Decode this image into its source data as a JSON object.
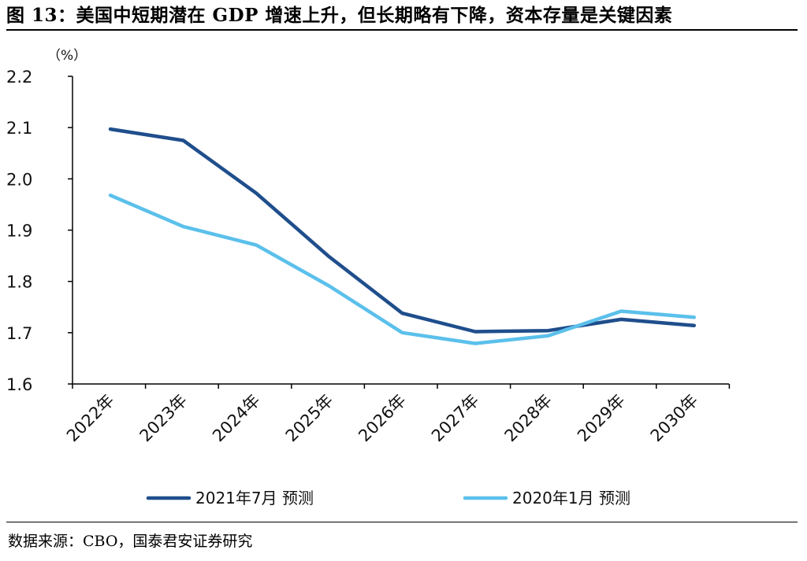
{
  "figure": {
    "title": "图 13：美国中短期潜在 GDP 增速上升，但长期略有下降，资本存量是关键因素",
    "source": "数据来源：CBO，国泰君安证券研究"
  },
  "colors": {
    "series_2021_07": "#1f4e8c",
    "series_2020_01": "#5bc0eb",
    "axis": "#000000"
  },
  "chart_data": {
    "type": "line",
    "title": "",
    "xlabel": "",
    "ylabel": "",
    "unit": "（%）",
    "x": [
      "2022年",
      "2023年",
      "2024年",
      "2025年",
      "2026年",
      "2027年",
      "2028年",
      "2029年",
      "2030年"
    ],
    "ylim": [
      1.6,
      2.2
    ],
    "yticks": [
      "1.6",
      "1.7",
      "1.8",
      "1.9",
      "2.0",
      "2.1",
      "2.2"
    ],
    "grid": false,
    "legend_position": "bottom",
    "series": [
      {
        "name": "2021年7月 预测",
        "values": [
          2.097,
          2.075,
          1.972,
          1.848,
          1.738,
          1.702,
          1.704,
          1.726,
          1.714
        ]
      },
      {
        "name": "2020年1月 预测",
        "values": [
          1.968,
          1.907,
          1.871,
          1.791,
          1.7,
          1.679,
          1.694,
          1.742,
          1.73
        ]
      }
    ]
  }
}
